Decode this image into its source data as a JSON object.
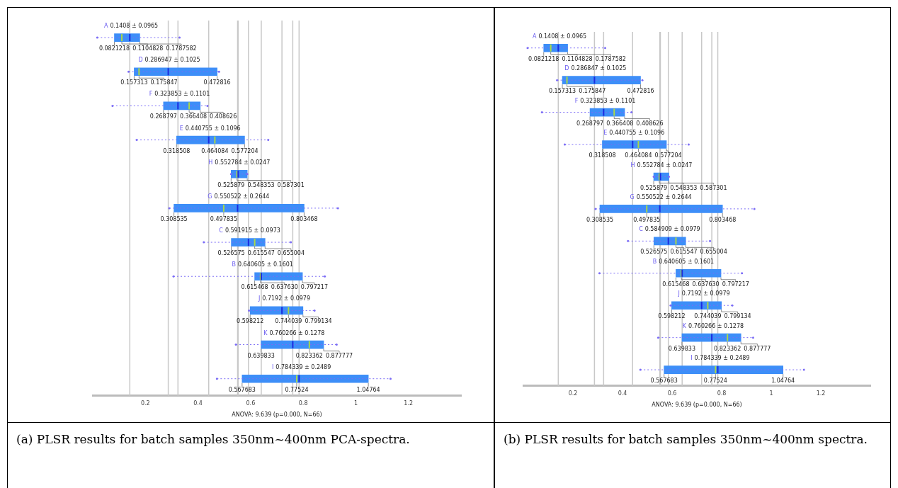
{
  "chart_data": [
    {
      "type": "box",
      "orientation": "horizontal",
      "title": "(a) PLSR results for batch samples 350nm~400nm PCA-spectra.",
      "xlabel": "ANOVA: 9.639 (p=0.000, N=66)",
      "categories": [
        "A",
        "D",
        "F",
        "E",
        "H",
        "G",
        "C",
        "B",
        "J",
        "K",
        "I"
      ],
      "series": [
        {
          "color": "#3d8ef8",
          "boxes": [
            {
              "low": 0.017,
              "q1": 0.0821218,
              "median": 0.1104828,
              "q3": 0.1787582,
              "high": 0.33,
              "mean": 0.1408
            },
            {
              "low": 0.136,
              "q1": 0.157313,
              "median": 0.175847,
              "q3": 0.472816,
              "high": 0.48,
              "mean": 0.286947
            },
            {
              "low": 0.075,
              "q1": 0.268797,
              "median": 0.366408,
              "q3": 0.408626,
              "high": 0.436,
              "mean": 0.323853
            },
            {
              "low": 0.167,
              "q1": 0.318508,
              "median": 0.464084,
              "q3": 0.577204,
              "high": 0.667,
              "mean": 0.440755
            },
            {
              "low": 0.525879,
              "q1": 0.525879,
              "median": 0.548353,
              "q3": 0.587301,
              "high": 0.587301,
              "mean": 0.552784
            },
            {
              "low": 0.291,
              "q1": 0.308535,
              "median": 0.497835,
              "q3": 0.803468,
              "high": 0.932,
              "mean": 0.550522
            },
            {
              "low": 0.422,
              "q1": 0.526575,
              "median": 0.615547,
              "q3": 0.655004,
              "high": 0.753,
              "mean": 0.591915
            },
            {
              "low": 0.307,
              "q1": 0.615468,
              "median": 0.63763,
              "q3": 0.797217,
              "high": 0.882,
              "mean": 0.640605
            },
            {
              "low": 0.594,
              "q1": 0.598212,
              "median": 0.744039,
              "q3": 0.799134,
              "high": 0.843,
              "mean": 0.7192
            },
            {
              "low": 0.544,
              "q1": 0.639833,
              "median": 0.823362,
              "q3": 0.877777,
              "high": 0.927,
              "mean": 0.760266
            },
            {
              "low": 0.472,
              "q1": 0.567683,
              "median": 0.77524,
              "q3": 1.04764,
              "high": 1.132,
              "mean": 0.784339
            }
          ]
        }
      ],
      "xlim": [
        0,
        1.4
      ],
      "xticks": [
        0.2,
        0.4,
        0.6,
        0.8,
        1,
        1.2
      ],
      "ref_lines": [
        {
          "axis": "x",
          "value": 0.1408,
          "color": "#c8c8c8"
        },
        {
          "axis": "x",
          "value": 0.286947,
          "color": "#c8c8c8"
        },
        {
          "axis": "x",
          "value": 0.323853,
          "color": "#c8c8c8"
        },
        {
          "axis": "x",
          "value": 0.440755,
          "color": "#c8c8c8"
        },
        {
          "axis": "x",
          "value": 0.550522,
          "color": "#c8c8c8"
        },
        {
          "axis": "x",
          "value": 0.552784,
          "color": "#c8c8c8"
        },
        {
          "axis": "x",
          "value": 0.591915,
          "color": "#c8c8c8"
        },
        {
          "axis": "x",
          "value": 0.640605,
          "color": "#c8c8c8"
        },
        {
          "axis": "x",
          "value": 0.7192,
          "color": "#c8c8c8"
        },
        {
          "axis": "x",
          "value": 0.760266,
          "color": "#c8c8c8"
        },
        {
          "axis": "x",
          "value": 0.784339,
          "color": "#c8c8c8"
        }
      ],
      "annotations": [
        {
          "text": "0.1408 ± 0.0965",
          "x": 0.1408,
          "y": "A"
        },
        {
          "text": "0.0821218",
          "x": 0.0821218,
          "y": "A"
        },
        {
          "text": "0.1104828",
          "x": 0.1104828,
          "y": "A"
        },
        {
          "text": "0.1787582",
          "x": 0.1787582,
          "y": "A"
        },
        {
          "text": "0.286947 ± 0.1025",
          "x": 0.286947,
          "y": "D"
        },
        {
          "text": "0.157313",
          "x": 0.157313,
          "y": "D"
        },
        {
          "text": "0.175847",
          "x": 0.175847,
          "y": "D"
        },
        {
          "text": "0.472816",
          "x": 0.472816,
          "y": "D"
        },
        {
          "text": "0.323853 ± 0.1101",
          "x": 0.323853,
          "y": "F"
        },
        {
          "text": "0.268797",
          "x": 0.268797,
          "y": "F"
        },
        {
          "text": "0.366408",
          "x": 0.366408,
          "y": "F"
        },
        {
          "text": "0.408626",
          "x": 0.408626,
          "y": "F"
        },
        {
          "text": "0.440755 ± 0.1096",
          "x": 0.440755,
          "y": "E"
        },
        {
          "text": "0.318508",
          "x": 0.318508,
          "y": "E"
        },
        {
          "text": "0.464084",
          "x": 0.464084,
          "y": "E"
        },
        {
          "text": "0.577204",
          "x": 0.577204,
          "y": "E"
        },
        {
          "text": "0.552784 ± 0.0247",
          "x": 0.552784,
          "y": "H"
        },
        {
          "text": "0.525879",
          "x": 0.525879,
          "y": "H"
        },
        {
          "text": "0.548353",
          "x": 0.548353,
          "y": "H"
        },
        {
          "text": "0.587301",
          "x": 0.587301,
          "y": "H"
        },
        {
          "text": "0.550522 ± 0.2644",
          "x": 0.550522,
          "y": "G"
        },
        {
          "text": "0.308535",
          "x": 0.308535,
          "y": "G"
        },
        {
          "text": "0.497835",
          "x": 0.497835,
          "y": "G"
        },
        {
          "text": "0.803468",
          "x": 0.803468,
          "y": "G"
        },
        {
          "text": "0.591915 ± 0.0973",
          "x": 0.591915,
          "y": "C"
        },
        {
          "text": "0.526575",
          "x": 0.526575,
          "y": "C"
        },
        {
          "text": "0.615547",
          "x": 0.615547,
          "y": "C"
        },
        {
          "text": "0.655004",
          "x": 0.655004,
          "y": "C"
        },
        {
          "text": "0.640605 ± 0.1601",
          "x": 0.640605,
          "y": "B"
        },
        {
          "text": "0.615468",
          "x": 0.615468,
          "y": "B"
        },
        {
          "text": "0.637630",
          "x": 0.63763,
          "y": "B"
        },
        {
          "text": "0.797217",
          "x": 0.797217,
          "y": "B"
        },
        {
          "text": "0.7192 ± 0.0979",
          "x": 0.7192,
          "y": "J"
        },
        {
          "text": "0.598212",
          "x": 0.598212,
          "y": "J"
        },
        {
          "text": "0.744039",
          "x": 0.744039,
          "y": "J"
        },
        {
          "text": "0.799134",
          "x": 0.799134,
          "y": "J"
        },
        {
          "text": "0.760266 ± 0.1278",
          "x": 0.760266,
          "y": "K"
        },
        {
          "text": "0.639833",
          "x": 0.639833,
          "y": "K"
        },
        {
          "text": "0.823362",
          "x": 0.823362,
          "y": "K"
        },
        {
          "text": "0.877777",
          "x": 0.877777,
          "y": "K"
        },
        {
          "text": "0.784339 ± 0.2489",
          "x": 0.784339,
          "y": "I"
        },
        {
          "text": "0.567683",
          "x": 0.567683,
          "y": "I"
        },
        {
          "text": "0.77524",
          "x": 0.77524,
          "y": "I"
        },
        {
          "text": "1.04764",
          "x": 1.04764,
          "y": "I"
        }
      ]
    },
    {
      "type": "box",
      "orientation": "horizontal",
      "title": "(b) PLSR results for batch samples 350nm~400nm spectra.",
      "xlabel": "ANOVA: 9.639 (p=0.000, N=66)",
      "categories": [
        "A",
        "D",
        "F",
        "E",
        "H",
        "G",
        "C",
        "B",
        "J",
        "K",
        "I"
      ],
      "series": [
        {
          "color": "#3d8ef8",
          "boxes": [
            {
              "low": 0.017,
              "q1": 0.0821218,
              "median": 0.1104828,
              "q3": 0.1787582,
              "high": 0.33,
              "mean": 0.1408
            },
            {
              "low": 0.136,
              "q1": 0.157313,
              "median": 0.175847,
              "q3": 0.472816,
              "high": 0.48,
              "mean": 0.286847
            },
            {
              "low": 0.075,
              "q1": 0.268797,
              "median": 0.366408,
              "q3": 0.408626,
              "high": 0.436,
              "mean": 0.323853
            },
            {
              "low": 0.167,
              "q1": 0.318508,
              "median": 0.464084,
              "q3": 0.577204,
              "high": 0.667,
              "mean": 0.440755
            },
            {
              "low": 0.525879,
              "q1": 0.525879,
              "median": 0.548353,
              "q3": 0.587301,
              "high": 0.587301,
              "mean": 0.552784
            },
            {
              "low": 0.291,
              "q1": 0.308535,
              "median": 0.497835,
              "q3": 0.803468,
              "high": 0.932,
              "mean": 0.550522
            },
            {
              "low": 0.422,
              "q1": 0.526575,
              "median": 0.615547,
              "q3": 0.655004,
              "high": 0.753,
              "mean": 0.584909
            },
            {
              "low": 0.307,
              "q1": 0.615468,
              "median": 0.63763,
              "q3": 0.797217,
              "high": 0.882,
              "mean": 0.640605
            },
            {
              "low": 0.594,
              "q1": 0.598212,
              "median": 0.744039,
              "q3": 0.799134,
              "high": 0.843,
              "mean": 0.7192
            },
            {
              "low": 0.544,
              "q1": 0.639833,
              "median": 0.823362,
              "q3": 0.877777,
              "high": 0.927,
              "mean": 0.760266
            },
            {
              "low": 0.472,
              "q1": 0.567683,
              "median": 0.77524,
              "q3": 1.04764,
              "high": 1.132,
              "mean": 0.784339
            }
          ]
        }
      ],
      "xlim": [
        0,
        1.4
      ],
      "xticks": [
        0.2,
        0.4,
        0.6,
        0.8,
        1,
        1.2
      ],
      "ref_lines": [
        {
          "axis": "x",
          "value": 0.1408,
          "color": "#c8c8c8"
        },
        {
          "axis": "x",
          "value": 0.286847,
          "color": "#c8c8c8"
        },
        {
          "axis": "x",
          "value": 0.323853,
          "color": "#c8c8c8"
        },
        {
          "axis": "x",
          "value": 0.440755,
          "color": "#c8c8c8"
        },
        {
          "axis": "x",
          "value": 0.550522,
          "color": "#c8c8c8"
        },
        {
          "axis": "x",
          "value": 0.552784,
          "color": "#c8c8c8"
        },
        {
          "axis": "x",
          "value": 0.584909,
          "color": "#c8c8c8"
        },
        {
          "axis": "x",
          "value": 0.640605,
          "color": "#c8c8c8"
        },
        {
          "axis": "x",
          "value": 0.7192,
          "color": "#c8c8c8"
        },
        {
          "axis": "x",
          "value": 0.760266,
          "color": "#c8c8c8"
        },
        {
          "axis": "x",
          "value": 0.784339,
          "color": "#c8c8c8"
        }
      ],
      "annotations": [
        {
          "text": "0.1408 ± 0.0965",
          "x": 0.1408,
          "y": "A"
        },
        {
          "text": "0.0821218",
          "x": 0.0821218,
          "y": "A"
        },
        {
          "text": "0.1104828",
          "x": 0.1104828,
          "y": "A"
        },
        {
          "text": "0.1787582",
          "x": 0.1787582,
          "y": "A"
        },
        {
          "text": "0.286847 ± 0.1025",
          "x": 0.286847,
          "y": "D"
        },
        {
          "text": "0.157313",
          "x": 0.157313,
          "y": "D"
        },
        {
          "text": "0.175847",
          "x": 0.175847,
          "y": "D"
        },
        {
          "text": "0.472816",
          "x": 0.472816,
          "y": "D"
        },
        {
          "text": "0.323853 ± 0.1101",
          "x": 0.323853,
          "y": "F"
        },
        {
          "text": "0.268797",
          "x": 0.268797,
          "y": "F"
        },
        {
          "text": "0.366408",
          "x": 0.366408,
          "y": "F"
        },
        {
          "text": "0.408626",
          "x": 0.408626,
          "y": "F"
        },
        {
          "text": "0.440755 ± 0.1096",
          "x": 0.440755,
          "y": "E"
        },
        {
          "text": "0.318508",
          "x": 0.318508,
          "y": "E"
        },
        {
          "text": "0.464084",
          "x": 0.464084,
          "y": "E"
        },
        {
          "text": "0.577204",
          "x": 0.577204,
          "y": "E"
        },
        {
          "text": "0.552784 ± 0.0247",
          "x": 0.552784,
          "y": "H"
        },
        {
          "text": "0.525879",
          "x": 0.525879,
          "y": "H"
        },
        {
          "text": "0.548353",
          "x": 0.548353,
          "y": "H"
        },
        {
          "text": "0.587301",
          "x": 0.587301,
          "y": "H"
        },
        {
          "text": "0.550522 ± 0.2644",
          "x": 0.550522,
          "y": "G"
        },
        {
          "text": "0.308535",
          "x": 0.308535,
          "y": "G"
        },
        {
          "text": "0.497835",
          "x": 0.497835,
          "y": "G"
        },
        {
          "text": "0.803468",
          "x": 0.803468,
          "y": "G"
        },
        {
          "text": "0.584909 ± 0.0979",
          "x": 0.584909,
          "y": "C"
        },
        {
          "text": "0.526575",
          "x": 0.526575,
          "y": "C"
        },
        {
          "text": "0.615547",
          "x": 0.615547,
          "y": "C"
        },
        {
          "text": "0.655004",
          "x": 0.655004,
          "y": "C"
        },
        {
          "text": "0.640605 ± 0.1601",
          "x": 0.640605,
          "y": "B"
        },
        {
          "text": "0.615468",
          "x": 0.615468,
          "y": "B"
        },
        {
          "text": "0.637630",
          "x": 0.63763,
          "y": "B"
        },
        {
          "text": "0.797217",
          "x": 0.797217,
          "y": "B"
        },
        {
          "text": "0.7192 ± 0.0979",
          "x": 0.7192,
          "y": "J"
        },
        {
          "text": "0.598212",
          "x": 0.598212,
          "y": "J"
        },
        {
          "text": "0.744039",
          "x": 0.744039,
          "y": "J"
        },
        {
          "text": "0.799134",
          "x": 0.799134,
          "y": "J"
        },
        {
          "text": "0.760266 ± 0.1278",
          "x": 0.760266,
          "y": "K"
        },
        {
          "text": "0.639833",
          "x": 0.639833,
          "y": "K"
        },
        {
          "text": "0.823362",
          "x": 0.823362,
          "y": "K"
        },
        {
          "text": "0.877777",
          "x": 0.877777,
          "y": "K"
        },
        {
          "text": "0.784339 ± 0.2489",
          "x": 0.784339,
          "y": "I"
        },
        {
          "text": "0.567683",
          "x": 0.567683,
          "y": "I"
        },
        {
          "text": "0.77524",
          "x": 0.77524,
          "y": "I"
        },
        {
          "text": "1.04764",
          "x": 1.04764,
          "y": "I"
        }
      ]
    }
  ]
}
